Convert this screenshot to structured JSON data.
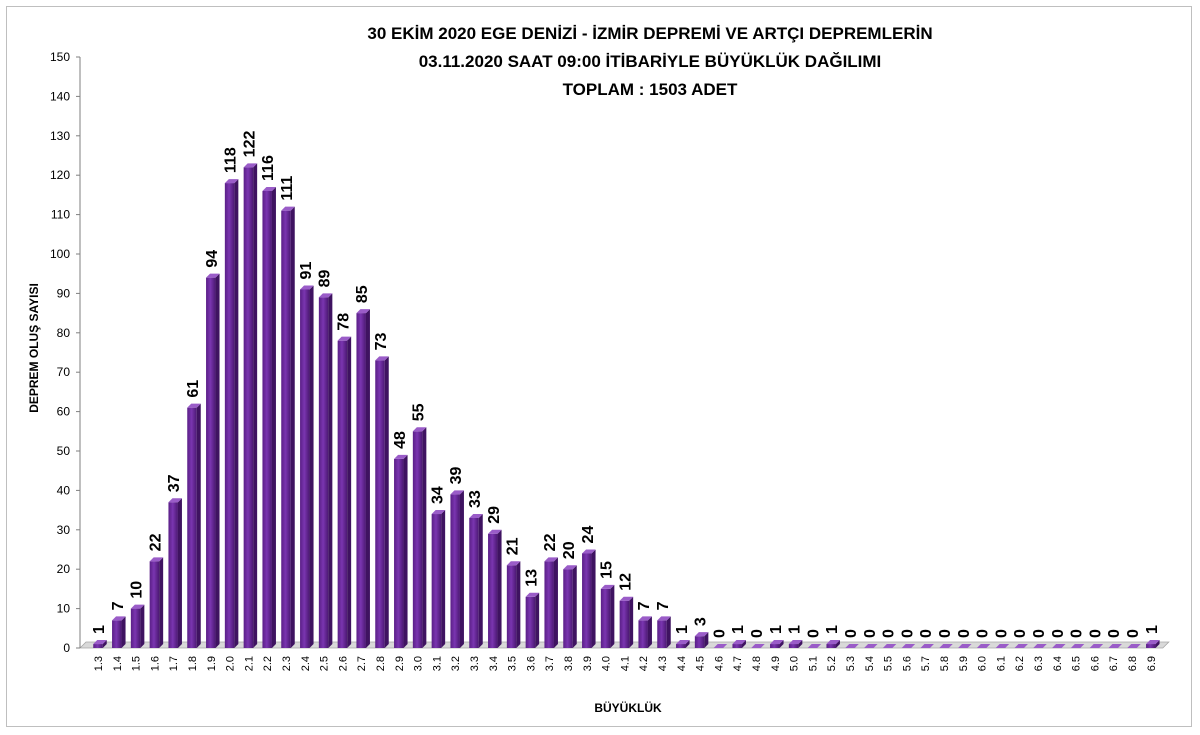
{
  "chart_data": {
    "type": "bar",
    "title_lines": [
      "30 EKİM 2020  EGE DENİZİ - İZMİR DEPREMİ VE ARTÇI DEPREMLERİN",
      "03.11.2020  SAAT 09:00 İTİBARİYLE   BÜYÜKLÜK DAĞILIMI",
      "TOPLAM : 1503 ADET"
    ],
    "xlabel": "BÜYÜKLÜK",
    "ylabel": "DEPREM OLUŞ SAYISI",
    "ylim": [
      0,
      150
    ],
    "yticks": [
      0,
      10,
      20,
      30,
      40,
      50,
      60,
      70,
      80,
      90,
      100,
      110,
      120,
      130,
      140,
      150
    ],
    "grid": false,
    "legend": "none",
    "bar_color": "#7030a0",
    "categories": [
      "1.3",
      "1.4",
      "1.5",
      "1.6",
      "1.7",
      "1.8",
      "1.9",
      "2.0",
      "2.1",
      "2.2",
      "2.3",
      "2.4",
      "2.5",
      "2.6",
      "2.7",
      "2.8",
      "2.9",
      "3.0",
      "3.1",
      "3.2",
      "3.3",
      "3.4",
      "3.5",
      "3.6",
      "3.7",
      "3.8",
      "3.9",
      "4.0",
      "4.1",
      "4.2",
      "4.3",
      "4.4",
      "4.5",
      "4.6",
      "4.7",
      "4.8",
      "4.9",
      "5.0",
      "5.1",
      "5.2",
      "5.3",
      "5.4",
      "5.5",
      "5.6",
      "5.7",
      "5.8",
      "5.9",
      "6.0",
      "6.1",
      "6.2",
      "6.3",
      "6.4",
      "6.5",
      "6.6",
      "6.7",
      "6.8",
      "6.9"
    ],
    "values": [
      1,
      7,
      10,
      22,
      37,
      61,
      94,
      118,
      122,
      116,
      111,
      91,
      89,
      78,
      85,
      73,
      48,
      55,
      34,
      39,
      33,
      29,
      21,
      13,
      22,
      20,
      24,
      15,
      12,
      7,
      7,
      1,
      3,
      0,
      1,
      0,
      1,
      1,
      0,
      1,
      0,
      0,
      0,
      0,
      0,
      0,
      0,
      0,
      0,
      0,
      0,
      0,
      0,
      0,
      0,
      0,
      1
    ]
  }
}
